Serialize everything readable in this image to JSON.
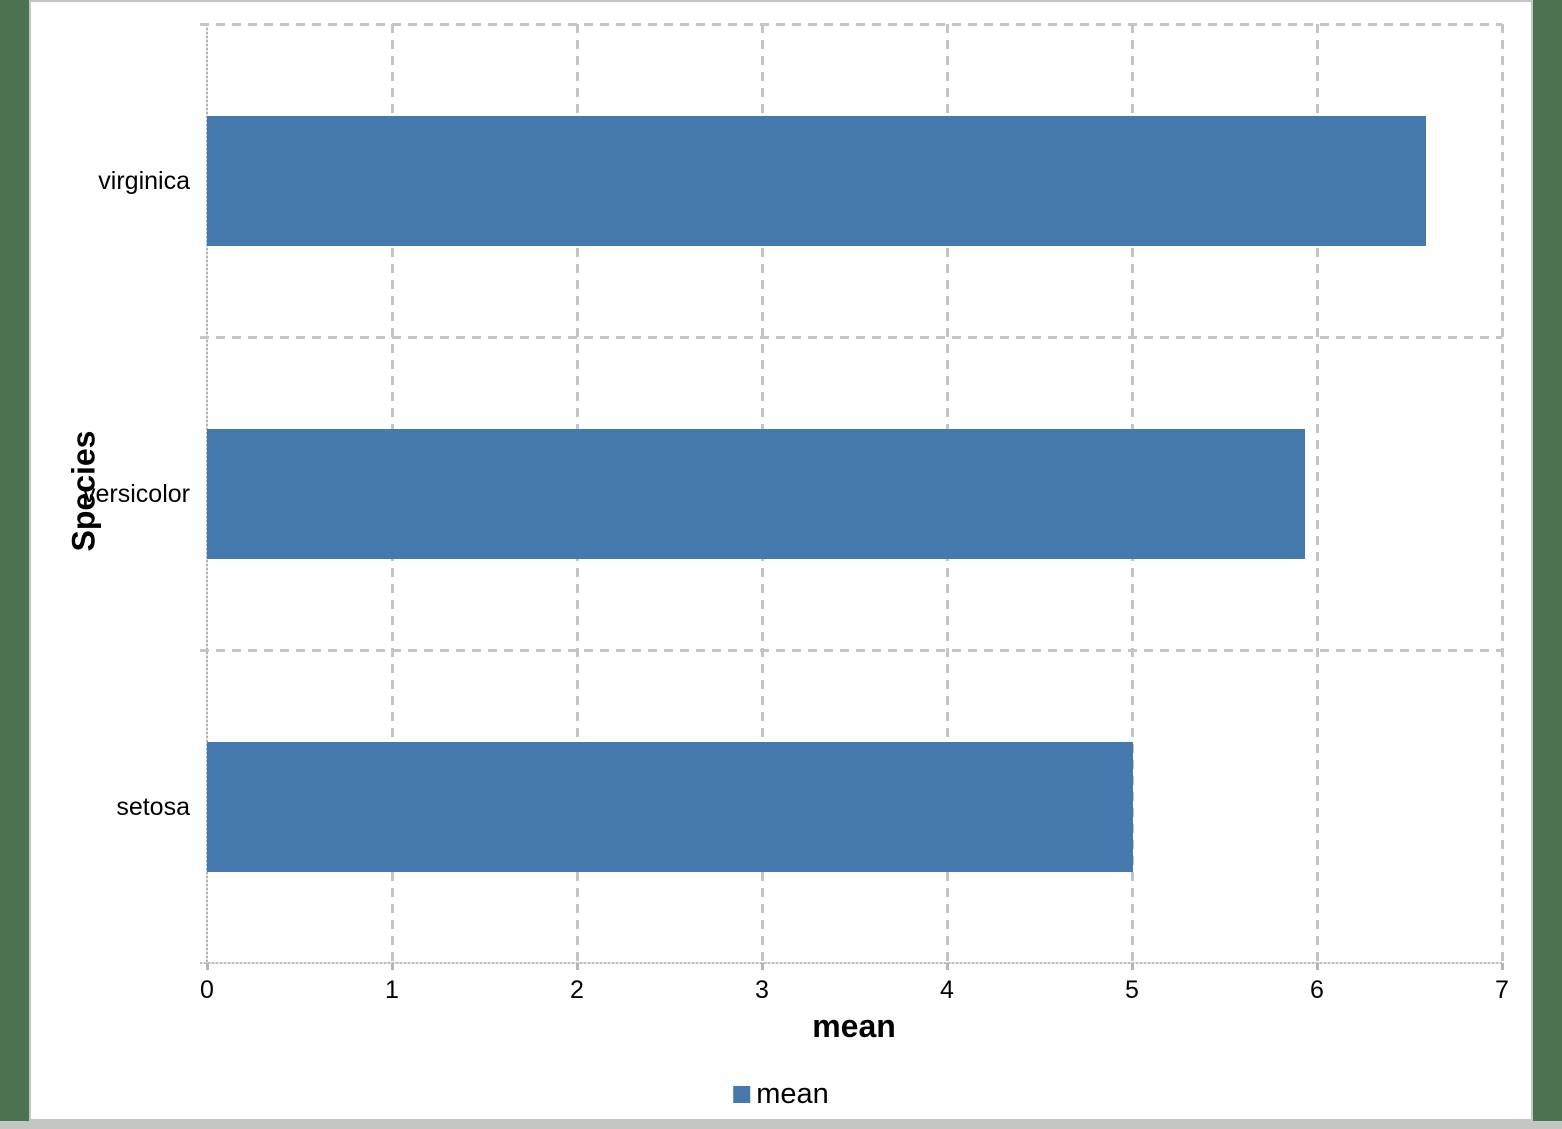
{
  "colors": {
    "window_background": "#4a7350",
    "canvas_background": "#ffffff",
    "canvas_border": "#c3c7c4",
    "bar": "#4579ad",
    "gridline": "#c5c5c5",
    "axis_line": "#b3b3b3",
    "text": "#000000"
  },
  "chart_data": {
    "type": "bar",
    "orientation": "horizontal",
    "title": "",
    "xlabel": "mean",
    "ylabel": "Species",
    "categories": [
      "virginica",
      "versicolor",
      "setosa"
    ],
    "category_order": "top-to-bottom",
    "values": [
      6.588,
      5.936,
      5.006
    ],
    "series": [
      {
        "name": "mean",
        "color": "#4579ad"
      }
    ],
    "xlim": [
      0,
      7
    ],
    "xticks": [
      0,
      1,
      2,
      3,
      4,
      5,
      6,
      7
    ],
    "xtick_labels": [
      "0",
      "1",
      "2",
      "3",
      "4",
      "5",
      "6",
      "7"
    ],
    "grid": "dashed",
    "legend": {
      "position": "bottom",
      "entries": [
        {
          "label": "mean",
          "color": "#4579ad",
          "swatch": "square"
        }
      ]
    }
  }
}
